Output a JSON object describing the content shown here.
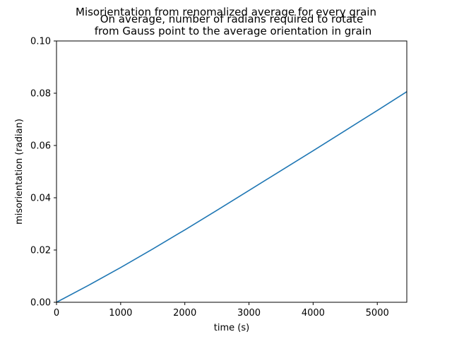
{
  "chart_data": {
    "type": "line",
    "suptitle": "Misorientation from renomalized average for every grain",
    "title_lines": [
      "On average, number of radians required to rotate",
      "from Gauss point to the average orientation in grain"
    ],
    "xlabel": "time (s)",
    "ylabel": "misorientation (radian)",
    "xlim": [
      0,
      5460
    ],
    "ylim": [
      0,
      0.1
    ],
    "xticks": [
      0,
      1000,
      2000,
      3000,
      4000,
      5000
    ],
    "xtick_labels": [
      "0",
      "1000",
      "2000",
      "3000",
      "4000",
      "5000"
    ],
    "yticks": [
      0,
      0.02,
      0.04,
      0.06,
      0.08,
      0.1
    ],
    "ytick_labels": [
      "0.00",
      "0.02",
      "0.04",
      "0.06",
      "0.08",
      "0.10"
    ],
    "grid": false,
    "legend": "none",
    "series": [
      {
        "color": "#1f77b4",
        "x": [
          0,
          500,
          1000,
          1500,
          2000,
          2500,
          3000,
          3500,
          4000,
          4500,
          5000,
          5460
        ],
        "y": [
          0,
          0.0065,
          0.0133,
          0.0204,
          0.0277,
          0.0352,
          0.0428,
          0.0504,
          0.058,
          0.0657,
          0.0734,
          0.0806
        ]
      }
    ]
  }
}
